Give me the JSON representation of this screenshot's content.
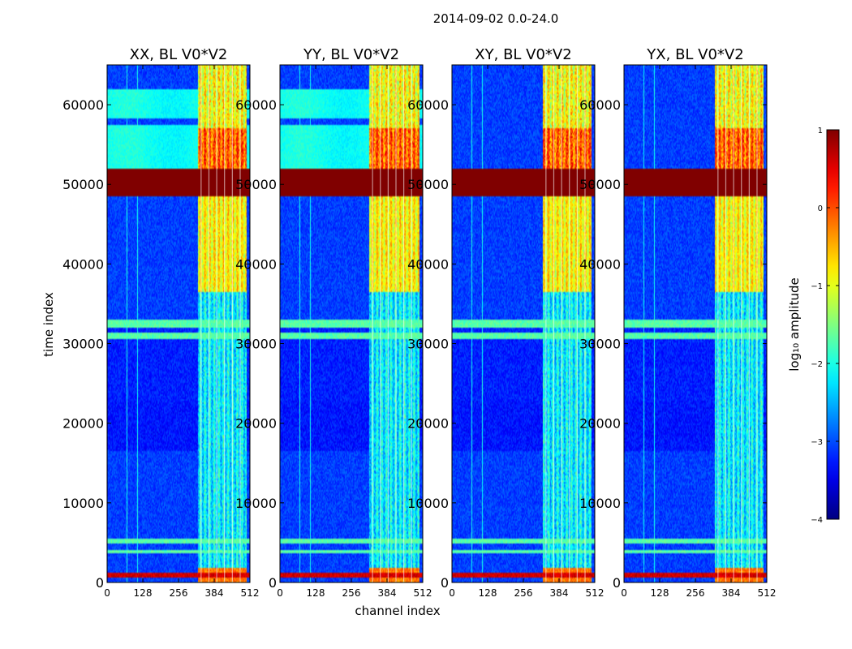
{
  "chart_data": {
    "type": "heatmap",
    "suptitle": "2014-09-02 0.0-24.0",
    "xlabel": "channel index",
    "ylabel": "time index",
    "xlim": [
      0,
      512
    ],
    "ylim": [
      0,
      65000
    ],
    "x_ticks": [
      0,
      128,
      256,
      384,
      512
    ],
    "x_tick_labels": [
      "0",
      "128",
      "256",
      "384",
      "512"
    ],
    "y_ticks": [
      0,
      10000,
      20000,
      30000,
      40000,
      50000,
      60000
    ],
    "y_tick_labels": [
      "0",
      "10000",
      "20000",
      "30000",
      "40000",
      "50000",
      "60000"
    ],
    "panels": [
      {
        "title": "XX, BL V0*V2",
        "band_start": 325,
        "bright_top": true
      },
      {
        "title": "YY, BL V0*V2",
        "band_start": 320,
        "bright_top": true
      },
      {
        "title": "XY, BL V0*V2",
        "band_start": 325,
        "bright_top": false
      },
      {
        "title": "YX, BL V0*V2",
        "band_start": 325,
        "bright_top": false
      }
    ],
    "saturated_block": [
      48500,
      52000
    ],
    "colorbar": {
      "label": "log₁₀ amplitude",
      "range": [
        -4,
        1
      ],
      "ticks": [
        1,
        0,
        -1,
        -2,
        -3,
        -4
      ],
      "tick_labels": [
        "1",
        "0",
        "−1",
        "−2",
        "−3",
        "−4"
      ],
      "colormap": "jet"
    }
  }
}
